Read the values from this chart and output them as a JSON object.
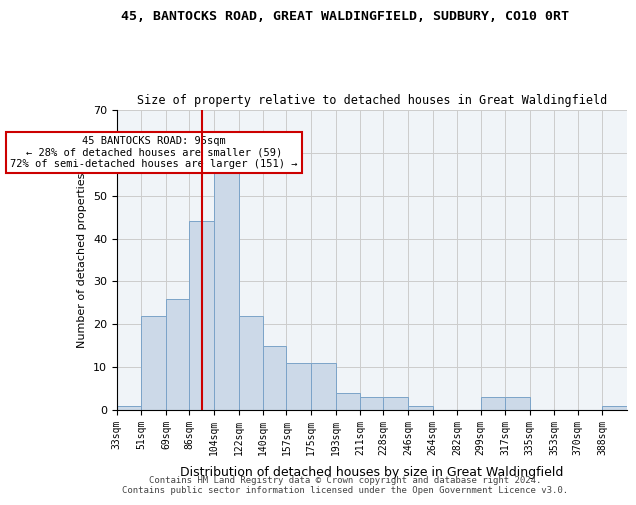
{
  "title1": "45, BANTOCKS ROAD, GREAT WALDINGFIELD, SUDBURY, CO10 0RT",
  "title2": "Size of property relative to detached houses in Great Waldingfield",
  "xlabel": "Distribution of detached houses by size in Great Waldingfield",
  "ylabel": "Number of detached properties",
  "bin_labels": [
    "33sqm",
    "51sqm",
    "69sqm",
    "86sqm",
    "104sqm",
    "122sqm",
    "140sqm",
    "157sqm",
    "175sqm",
    "193sqm",
    "211sqm",
    "228sqm",
    "246sqm",
    "264sqm",
    "282sqm",
    "299sqm",
    "317sqm",
    "335sqm",
    "353sqm",
    "370sqm",
    "388sqm"
  ],
  "bar_heights": [
    1,
    22,
    26,
    44,
    58,
    22,
    15,
    11,
    11,
    4,
    3,
    3,
    1,
    0,
    0,
    3,
    3,
    0,
    0,
    0,
    1
  ],
  "bar_color": "#ccd9e8",
  "bar_edge_color": "#7ba3c8",
  "vline_x": 95,
  "vline_color": "#cc0000",
  "annotation_text": "45 BANTOCKS ROAD: 95sqm\n← 28% of detached houses are smaller (59)\n72% of semi-detached houses are larger (151) →",
  "annotation_box_color": "#ffffff",
  "annotation_box_edge": "#cc0000",
  "ylim": [
    0,
    70
  ],
  "yticks": [
    0,
    10,
    20,
    30,
    40,
    50,
    60,
    70
  ],
  "grid_color": "#cccccc",
  "background_color": "#ffffff",
  "footer": "Contains HM Land Registry data © Crown copyright and database right 2024.\nContains public sector information licensed under the Open Government Licence v3.0.",
  "bin_edges": [
    33,
    51,
    69,
    86,
    104,
    122,
    140,
    157,
    175,
    193,
    211,
    228,
    246,
    264,
    282,
    299,
    317,
    335,
    353,
    370,
    388
  ]
}
